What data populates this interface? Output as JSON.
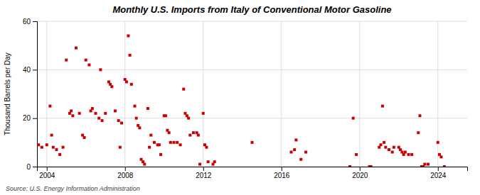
{
  "chart_data": {
    "type": "scatter",
    "title": "Monthly U.S. Imports from Italy of Conventional Motor Gasoline",
    "ylabel": "Thousand Barrels per Day",
    "source": "Source: U.S. Energy Information Administration",
    "color": "#cc0000",
    "marker": "square",
    "grid": true,
    "xlim": [
      2003.5,
      2025.5
    ],
    "xticks": [
      2004,
      2008,
      2012,
      2016,
      2020,
      2024
    ],
    "ylim": [
      0,
      60
    ],
    "yticks": [
      0,
      20,
      40,
      60
    ],
    "x": [
      2003.58,
      2003.75,
      2004.0,
      2004.17,
      2004.25,
      2004.33,
      2004.5,
      2004.67,
      2004.83,
      2005.0,
      2005.17,
      2005.25,
      2005.33,
      2005.5,
      2005.67,
      2005.83,
      2005.92,
      2006.0,
      2006.17,
      2006.25,
      2006.33,
      2006.5,
      2006.67,
      2006.75,
      2006.83,
      2007.0,
      2007.17,
      2007.25,
      2007.33,
      2007.5,
      2007.67,
      2007.75,
      2007.83,
      2008.0,
      2008.08,
      2008.17,
      2008.25,
      2008.33,
      2008.5,
      2008.58,
      2008.67,
      2008.75,
      2008.83,
      2008.92,
      2009.0,
      2009.17,
      2009.25,
      2009.33,
      2009.5,
      2009.67,
      2009.75,
      2009.83,
      2010.0,
      2010.08,
      2010.17,
      2010.25,
      2010.33,
      2010.5,
      2010.67,
      2010.83,
      2011.0,
      2011.08,
      2011.17,
      2011.25,
      2011.33,
      2011.5,
      2011.67,
      2011.75,
      2011.83,
      2012.0,
      2012.08,
      2012.17,
      2012.25,
      2012.5,
      2012.58,
      2014.5,
      2016.5,
      2016.67,
      2016.75,
      2017.0,
      2017.25,
      2019.5,
      2019.67,
      2019.83,
      2020.5,
      2020.58,
      2021.0,
      2021.08,
      2021.17,
      2021.25,
      2021.33,
      2021.5,
      2021.67,
      2021.75,
      2022.0,
      2022.08,
      2022.17,
      2022.25,
      2022.33,
      2022.5,
      2022.67,
      2023.0,
      2023.08,
      2023.17,
      2023.25,
      2023.33,
      2023.5,
      2024.0,
      2024.08,
      2024.17,
      2024.33
    ],
    "values": [
      9,
      8,
      9,
      25,
      13,
      8,
      7,
      5,
      8,
      44,
      22,
      23,
      21,
      49,
      22,
      13,
      12,
      44,
      42,
      23,
      24,
      22,
      20,
      40,
      19,
      22,
      35,
      34,
      33,
      23,
      19,
      8,
      18,
      36,
      35,
      54,
      46,
      34,
      25,
      20,
      17,
      16,
      3,
      2,
      1,
      24,
      8,
      13,
      10,
      9,
      9,
      5,
      21,
      21,
      15,
      14,
      10,
      10,
      10,
      9,
      32,
      22,
      21,
      20,
      13,
      14,
      14,
      13,
      1,
      22,
      9,
      8,
      2,
      1,
      2,
      10,
      6,
      7,
      11,
      3,
      6,
      0,
      20,
      5,
      0,
      0,
      8,
      9,
      25,
      10,
      8,
      7,
      6,
      8,
      8,
      7,
      6,
      5,
      6,
      5,
      5,
      14,
      21,
      0,
      0,
      1,
      1,
      10,
      5,
      4,
      0
    ]
  }
}
